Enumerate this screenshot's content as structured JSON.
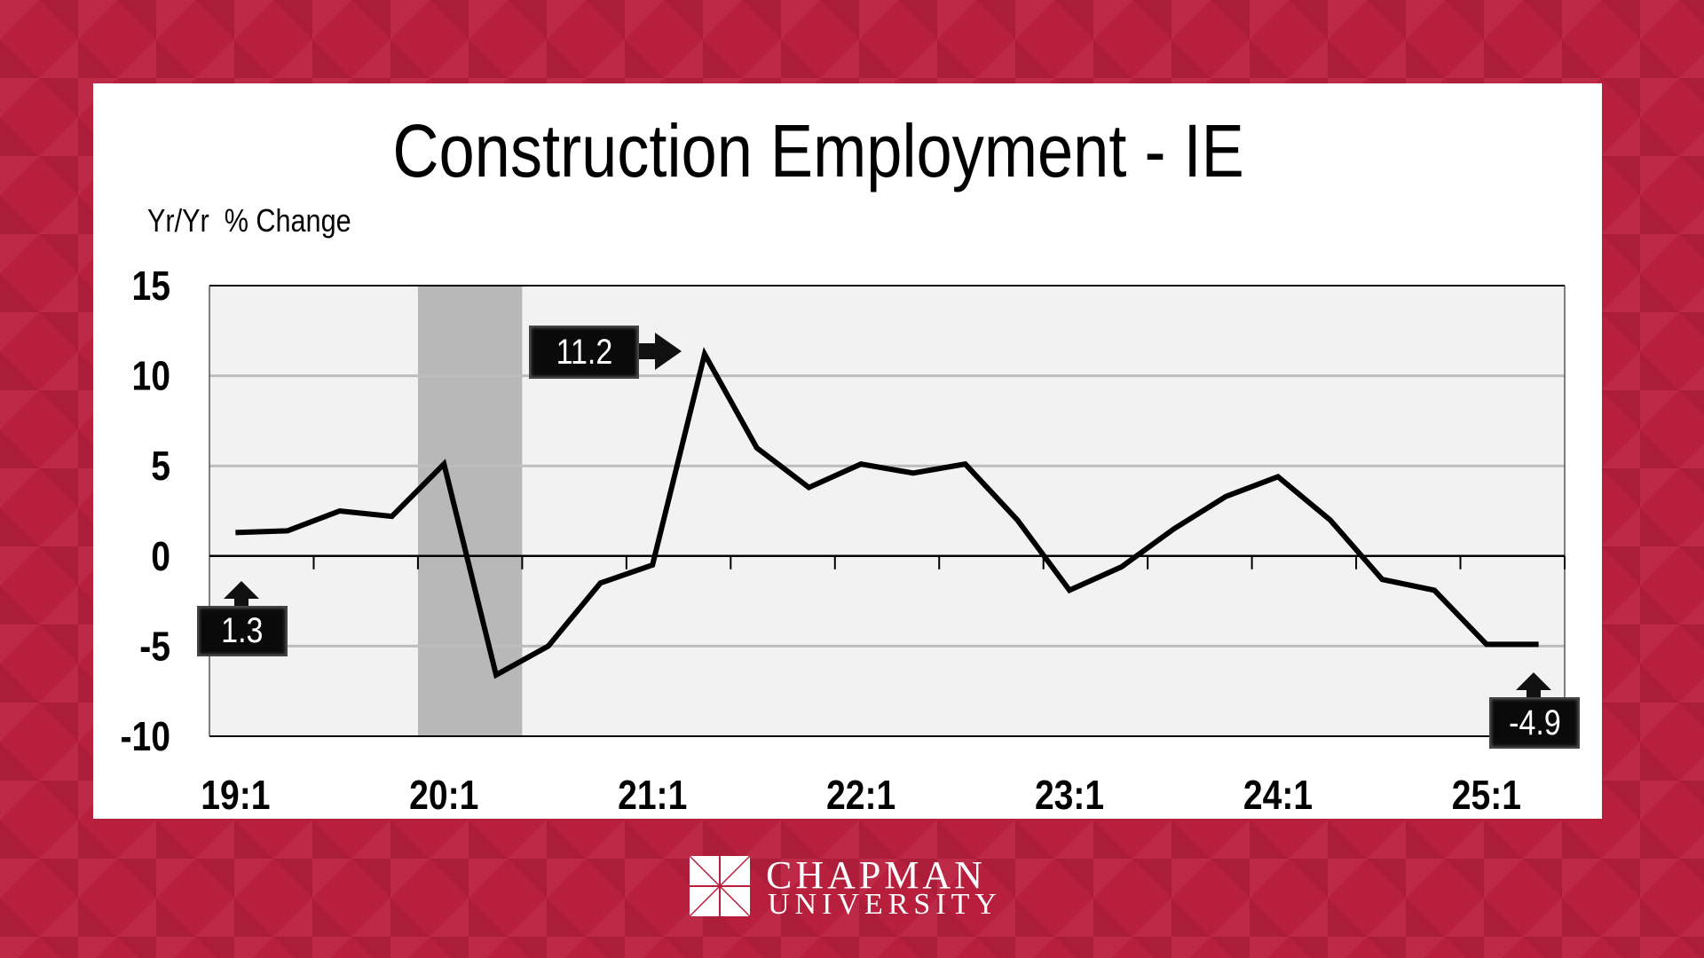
{
  "chart_data": {
    "type": "line",
    "title": "Construction Employment - IE",
    "ylabel": "Yr/Yr  % Change",
    "xlabel": "",
    "ylim": [
      -10,
      15
    ],
    "yticks": [
      "15",
      "10",
      "5",
      "0",
      "-5",
      "-10"
    ],
    "ytick_values": [
      15,
      10,
      5,
      0,
      -5,
      -10
    ],
    "xtick_labels": [
      "19:1",
      "20:1",
      "21:1",
      "22:1",
      "23:1",
      "24:1",
      "25:1"
    ],
    "xtick_indices": [
      0,
      4,
      8,
      12,
      16,
      20,
      24
    ],
    "x": [
      "19:1",
      "19:2",
      "19:3",
      "19:4",
      "20:1",
      "20:2",
      "20:3",
      "20:4",
      "21:1",
      "21:2",
      "21:3",
      "21:4",
      "22:1",
      "22:2",
      "22:3",
      "22:4",
      "23:1",
      "23:2",
      "23:3",
      "23:4",
      "24:1",
      "24:2",
      "24:3",
      "24:4",
      "25:1",
      "25:2"
    ],
    "series": [
      {
        "name": "Construction Employment - IE",
        "values": [
          1.3,
          1.4,
          2.5,
          2.2,
          5.1,
          -6.6,
          -5.0,
          -1.5,
          -0.5,
          11.2,
          6.0,
          3.8,
          5.1,
          4.6,
          5.1,
          2.0,
          -1.9,
          -0.6,
          1.5,
          3.3,
          4.4,
          2.0,
          -1.3,
          -1.9,
          -4.9,
          -4.9
        ],
        "color": "#000000"
      }
    ],
    "recession_shading": {
      "start": "20:1",
      "end": "20:2",
      "color": "#b8b8b8"
    },
    "grid": true,
    "plot_background": "#f2f2f2",
    "annotations": [
      {
        "label": "1.3",
        "point": "19:1"
      },
      {
        "label": "11.2",
        "point": "21:2"
      },
      {
        "label": "-4.9",
        "point": "25:2"
      }
    ]
  },
  "logo": {
    "line1": "CHAPMAN",
    "line2": "UNIVERSITY"
  }
}
